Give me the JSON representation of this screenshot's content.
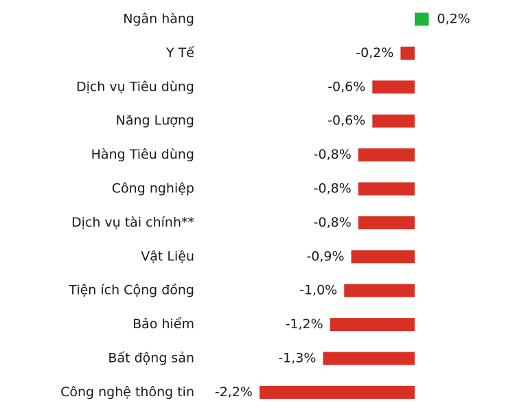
{
  "chart_data": {
    "type": "hbar",
    "categories": [
      "Ngân hàng",
      "Y Tế",
      "Dịch vụ Tiêu dùng",
      "Năng Lượng",
      "Hàng Tiêu dùng",
      "Công nghiệp",
      "Dịch vụ tài chính**",
      "Vật Liệu",
      "Tiện ích Cộng đồng",
      "Bảo hiểm",
      "Bất động sản",
      "Công nghệ thông tin"
    ],
    "values": [
      0.2,
      -0.2,
      -0.6,
      -0.6,
      -0.8,
      -0.8,
      -0.8,
      -0.9,
      -1.0,
      -1.2,
      -1.3,
      -2.2
    ],
    "value_labels": [
      "0,2%",
      "-0,2%",
      "-0,6%",
      "-0,6%",
      "-0,8%",
      "-0,8%",
      "-0,8%",
      "-0,9%",
      "-1,0%",
      "-1,2%",
      "-1,3%",
      "-2,2%"
    ],
    "positive_color": "#1db53a",
    "negative_color": "#d93025",
    "xlim": [
      -2.2,
      0.2
    ]
  }
}
